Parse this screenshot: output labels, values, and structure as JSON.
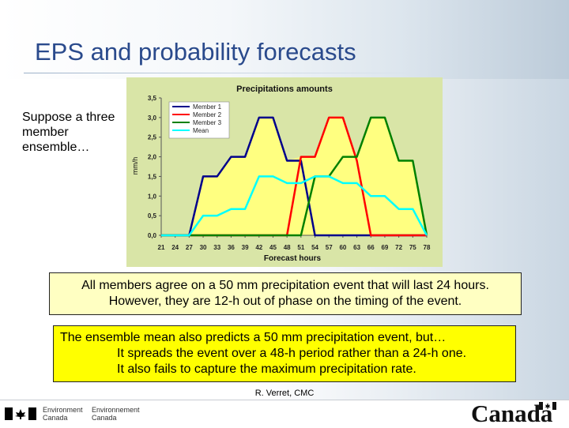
{
  "slide": {
    "title": "EPS and probability forecasts",
    "side_text": "Suppose a three member ensemble…",
    "box1_line1": "All members agree on a 50 mm precipitation event that will last 24 hours.",
    "box1_line2": "However, they are 12-h out of phase on the timing of the event.",
    "box2_line1": "The ensemble mean also predicts a 50 mm precipitation event, but…",
    "box2_line2": "It spreads the event over a 48-h period rather than a 24-h one.",
    "box2_line3": "It also fails to capture the maximum precipitation rate.",
    "credit": "R. Verret, CMC"
  },
  "footer": {
    "dept_en_1": "Environment",
    "dept_en_2": "Canada",
    "dept_fr_1": "Environnement",
    "dept_fr_2": "Canada",
    "wordmark": "Canada"
  },
  "colors": {
    "title": "#2a4a8c",
    "chart_bg": "#d9e5a7",
    "fill": "#ffff80",
    "member1": "#00008b",
    "member2": "#ff0000",
    "member3": "#008000",
    "mean": "#00ffff",
    "box1_bg": "#ffffc2",
    "box2_bg": "#ffff00"
  },
  "chart_data": {
    "type": "line",
    "title": "Precipitations amounts",
    "xlabel": "Forecast hours",
    "ylabel": "mm/h",
    "x": [
      21,
      24,
      27,
      30,
      33,
      36,
      39,
      42,
      45,
      48,
      51,
      54,
      57,
      60,
      63,
      66,
      69,
      72,
      75,
      78
    ],
    "ylim": [
      0,
      3.5
    ],
    "yticks": [
      "0,0",
      "0,5",
      "1,0",
      "1,5",
      "2,0",
      "2,5",
      "3,0",
      "3,5"
    ],
    "grid": false,
    "legend": "top-left",
    "series": [
      {
        "name": "Member 1",
        "color": "#00008b",
        "values": [
          0,
          0,
          0,
          1.5,
          1.5,
          2.0,
          2.0,
          3.0,
          3.0,
          1.9,
          1.9,
          0,
          0,
          0,
          0,
          0,
          0,
          0,
          0,
          0
        ]
      },
      {
        "name": "Member 2",
        "color": "#ff0000",
        "values": [
          0,
          0,
          0,
          0,
          0,
          0,
          0,
          0,
          0,
          0,
          2.0,
          2.0,
          3.0,
          3.0,
          1.9,
          0,
          0,
          0,
          0,
          0
        ]
      },
      {
        "name": "Member 3",
        "color": "#008000",
        "values": [
          0,
          0,
          0,
          0,
          0,
          0,
          0,
          0,
          0,
          0,
          0,
          1.5,
          1.5,
          2.0,
          2.0,
          3.0,
          3.0,
          1.9,
          1.9,
          0
        ]
      },
      {
        "name": "Mean",
        "color": "#00ffff",
        "values": [
          0,
          0,
          0,
          0.5,
          0.5,
          0.67,
          0.67,
          1.5,
          1.5,
          1.33,
          1.33,
          1.5,
          1.5,
          1.33,
          1.33,
          1.0,
          1.0,
          0.67,
          0.67,
          0
        ]
      }
    ]
  }
}
